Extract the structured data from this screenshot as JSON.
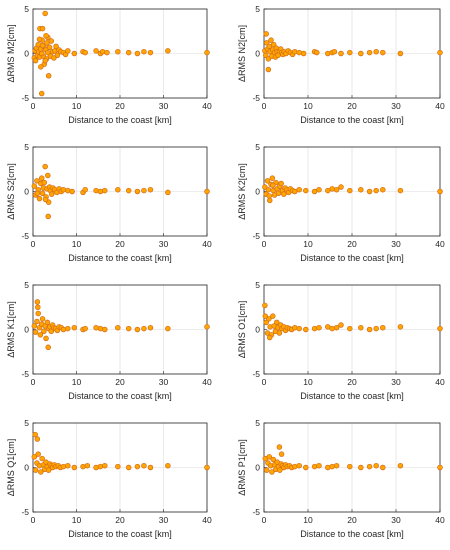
{
  "figure": {
    "colors": {
      "marker_fill": "#ffa500",
      "marker_edge": "#d2691e",
      "grid": "#dcdcdc",
      "axis": "#262626"
    }
  },
  "chart_data": [
    {
      "type": "scatter",
      "xlabel": "Distance to the coast [km]",
      "ylabel": "ΔRMS M2[cm]",
      "xlim": [
        0,
        40
      ],
      "ylim": [
        -5,
        5
      ],
      "xticks": [
        0,
        10,
        20,
        30,
        40
      ],
      "yticks": [
        -5,
        0,
        5
      ],
      "grid": true,
      "x": [
        0.3,
        0.5,
        0.6,
        0.8,
        1.0,
        1.2,
        1.3,
        1.5,
        1.6,
        1.8,
        2.0,
        2.1,
        2.2,
        2.4,
        2.5,
        2.6,
        2.8,
        3.0,
        3.1,
        3.2,
        3.4,
        3.6,
        3.8,
        4.0,
        4.2,
        4.5,
        4.8,
        5.0,
        5.3,
        5.6,
        6.0,
        6.4,
        7.0,
        7.5,
        8.0,
        9.5,
        11.5,
        12.0,
        14.5,
        15.5,
        16.0,
        17.0,
        19.5,
        22.0,
        24.0,
        25.5,
        27.0,
        31.0,
        40.0,
        1.8,
        2.2,
        2.8,
        3.4,
        3.0,
        2.0,
        1.5
      ],
      "y": [
        -0.5,
        0.3,
        -0.8,
        0.6,
        -0.2,
        1.0,
        0.2,
        -0.4,
        2.8,
        0.5,
        -4.5,
        1.5,
        2.8,
        -0.3,
        0.8,
        -1.2,
        4.5,
        0.4,
        -0.6,
        1.2,
        0.1,
        -2.5,
        0.7,
        -0.3,
        1.4,
        0.2,
        -0.5,
        0.3,
        0.8,
        -0.2,
        0.4,
        0.2,
        0.1,
        -0.1,
        0.3,
        0.0,
        0.2,
        0.1,
        0.3,
        0.0,
        0.2,
        0.1,
        0.2,
        0.1,
        0.0,
        0.2,
        0.1,
        0.3,
        0.1,
        -1.5,
        0.9,
        -0.8,
        1.8,
        2.0,
        0.0,
        1.6
      ]
    },
    {
      "type": "scatter",
      "xlabel": "Distance to the coast [km]",
      "ylabel": "ΔRMS N2[cm]",
      "xlim": [
        0,
        40
      ],
      "ylim": [
        -5,
        5
      ],
      "xticks": [
        0,
        10,
        20,
        30,
        40
      ],
      "yticks": [
        -5,
        0,
        5
      ],
      "grid": true,
      "x": [
        0.2,
        0.4,
        0.6,
        0.8,
        1.0,
        1.2,
        1.4,
        1.6,
        1.8,
        2.0,
        2.2,
        2.4,
        2.6,
        2.8,
        3.0,
        3.2,
        3.5,
        3.8,
        4.0,
        4.3,
        4.6,
        5.0,
        5.5,
        6.0,
        6.5,
        7.0,
        8.0,
        9.0,
        11.5,
        12.0,
        14.5,
        15.5,
        16.0,
        17.5,
        19.5,
        22.0,
        24.0,
        25.5,
        27.0,
        31.0,
        40.0,
        1.0,
        0.5
      ],
      "y": [
        0.3,
        -0.2,
        1.2,
        0.5,
        -0.6,
        0.8,
        0.2,
        1.5,
        -0.3,
        0.4,
        1.0,
        0.1,
        -0.4,
        0.6,
        0.2,
        -0.2,
        0.3,
        0.5,
        0.1,
        -0.1,
        0.2,
        0.0,
        0.3,
        0.1,
        -0.1,
        0.2,
        0.1,
        0.0,
        0.2,
        0.1,
        0.0,
        0.1,
        0.2,
        0.0,
        0.1,
        0.0,
        0.1,
        0.2,
        0.1,
        0.0,
        0.1,
        -1.8,
        2.2
      ]
    },
    {
      "type": "scatter",
      "xlabel": "Distance to the coast [km]",
      "ylabel": "ΔRMS S2[cm]",
      "xlim": [
        0,
        40
      ],
      "ylim": [
        -5,
        5
      ],
      "xticks": [
        0,
        10,
        20,
        30,
        40
      ],
      "yticks": [
        -5,
        0,
        5
      ],
      "grid": true,
      "x": [
        0.3,
        0.6,
        0.9,
        1.2,
        1.5,
        1.8,
        2.0,
        2.2,
        2.4,
        2.6,
        2.8,
        3.0,
        3.2,
        3.4,
        3.6,
        3.8,
        4.0,
        4.3,
        4.6,
        5.0,
        5.5,
        6.0,
        6.5,
        7.0,
        8.0,
        9.0,
        11.5,
        12.0,
        14.5,
        15.5,
        16.5,
        19.5,
        22.0,
        24.0,
        25.5,
        27.0,
        31.0,
        40.0,
        2.9,
        3.5,
        1.0
      ],
      "y": [
        0.6,
        -0.4,
        1.2,
        0.2,
        -0.8,
        0.9,
        1.5,
        -0.2,
        0.4,
        1.0,
        2.8,
        -0.6,
        0.3,
        1.8,
        -1.2,
        0.5,
        0.1,
        -0.3,
        0.4,
        0.2,
        -0.1,
        0.3,
        0.0,
        0.2,
        0.1,
        0.0,
        -0.1,
        0.2,
        0.1,
        0.0,
        0.1,
        0.2,
        0.1,
        0.0,
        0.1,
        0.2,
        -0.1,
        0.0,
        -0.9,
        -2.8,
        -0.2
      ]
    },
    {
      "type": "scatter",
      "xlabel": "Distance to the coast [km]",
      "ylabel": "ΔRMS K2[cm]",
      "xlim": [
        0,
        40
      ],
      "ylim": [
        -5,
        5
      ],
      "xticks": [
        0,
        10,
        20,
        30,
        40
      ],
      "yticks": [
        -5,
        0,
        5
      ],
      "grid": true,
      "x": [
        0.2,
        0.5,
        0.8,
        1.0,
        1.3,
        1.6,
        1.9,
        2.1,
        2.4,
        2.7,
        3.0,
        3.3,
        3.6,
        3.9,
        4.2,
        4.5,
        4.8,
        5.2,
        5.6,
        6.0,
        6.5,
        7.0,
        8.0,
        9.5,
        11.5,
        12.5,
        14.5,
        15.5,
        16.5,
        17.5,
        19.5,
        22.0,
        24.0,
        25.5,
        27.0,
        31.0,
        40.0,
        1.2,
        2.0
      ],
      "y": [
        0.5,
        -0.3,
        1.2,
        0.2,
        -1.0,
        0.8,
        1.5,
        0.1,
        -0.4,
        1.0,
        0.3,
        -0.2,
        0.6,
        0.9,
        0.1,
        -0.3,
        0.4,
        0.2,
        -0.1,
        0.3,
        0.1,
        0.0,
        0.2,
        0.1,
        0.0,
        0.2,
        0.1,
        0.3,
        0.2,
        0.5,
        0.1,
        0.2,
        0.0,
        0.1,
        0.2,
        0.1,
        0.0,
        -0.5,
        0.7
      ]
    },
    {
      "type": "scatter",
      "xlabel": "Distance to the coast [km]",
      "ylabel": "ΔRMS K1[cm]",
      "xlim": [
        0,
        40
      ],
      "ylim": [
        -5,
        5
      ],
      "xticks": [
        0,
        10,
        20,
        30,
        40
      ],
      "yticks": [
        -5,
        0,
        5
      ],
      "grid": true,
      "x": [
        0.3,
        0.6,
        0.9,
        1.0,
        1.2,
        1.5,
        1.7,
        2.0,
        2.2,
        2.5,
        2.8,
        3.0,
        3.3,
        3.6,
        3.9,
        4.2,
        4.5,
        4.8,
        5.2,
        5.6,
        6.0,
        6.5,
        7.0,
        8.0,
        9.5,
        11.5,
        12.0,
        14.5,
        15.5,
        16.5,
        19.5,
        22.0,
        24.0,
        25.5,
        27.0,
        31.0,
        40.0,
        1.1,
        3.5
      ],
      "y": [
        0.4,
        -0.3,
        0.9,
        3.1,
        1.8,
        0.2,
        -0.6,
        0.6,
        1.2,
        -0.2,
        0.4,
        -1.0,
        0.8,
        0.1,
        0.3,
        -0.2,
        0.5,
        0.2,
        0.1,
        -0.1,
        0.3,
        0.2,
        0.0,
        0.1,
        0.2,
        0.0,
        0.1,
        0.2,
        0.1,
        0.0,
        0.2,
        0.1,
        0.0,
        0.1,
        0.2,
        0.1,
        0.3,
        2.5,
        -2.0
      ]
    },
    {
      "type": "scatter",
      "xlabel": "Distance to the coast [km]",
      "ylabel": "ΔRMS O1[cm]",
      "xlim": [
        0,
        40
      ],
      "ylim": [
        -5,
        5
      ],
      "xticks": [
        0,
        10,
        20,
        30,
        40
      ],
      "yticks": [
        -5,
        0,
        5
      ],
      "grid": true,
      "x": [
        0.2,
        0.5,
        0.8,
        1.1,
        1.4,
        1.7,
        2.0,
        2.3,
        2.6,
        2.9,
        3.2,
        3.5,
        3.8,
        4.1,
        4.5,
        4.9,
        5.3,
        5.8,
        6.3,
        7.0,
        8.0,
        9.5,
        11.5,
        12.5,
        14.5,
        15.5,
        16.5,
        17.5,
        19.5,
        22.0,
        24.0,
        25.5,
        27.0,
        31.0,
        40.0,
        0.3,
        1.3
      ],
      "y": [
        2.7,
        0.8,
        -0.4,
        1.2,
        0.3,
        -0.6,
        1.5,
        0.4,
        -0.2,
        0.8,
        0.2,
        -0.4,
        0.5,
        0.1,
        0.3,
        -0.1,
        0.2,
        0.1,
        0.0,
        0.2,
        0.1,
        0.0,
        0.1,
        0.2,
        0.3,
        0.1,
        0.2,
        0.5,
        0.1,
        0.2,
        0.0,
        0.1,
        0.2,
        0.3,
        0.1,
        1.5,
        -0.9
      ]
    },
    {
      "type": "scatter",
      "xlabel": "Distance to the coast [km]",
      "ylabel": "ΔRMS Q1[cm]",
      "xlim": [
        0,
        40
      ],
      "ylim": [
        -5,
        5
      ],
      "xticks": [
        0,
        10,
        20,
        30,
        40
      ],
      "yticks": [
        -5,
        0,
        5
      ],
      "grid": true,
      "x": [
        0.3,
        0.6,
        0.9,
        1.2,
        1.5,
        1.8,
        2.1,
        2.4,
        2.7,
        3.0,
        3.3,
        3.6,
        3.9,
        4.2,
        4.5,
        4.9,
        5.3,
        5.8,
        6.3,
        7.0,
        8.0,
        9.5,
        11.5,
        12.5,
        14.5,
        15.5,
        16.5,
        19.5,
        22.0,
        24.0,
        25.5,
        27.0,
        31.0,
        40.0,
        0.5,
        1.0
      ],
      "y": [
        1.2,
        -0.3,
        0.5,
        1.5,
        0.2,
        -0.5,
        1.0,
        0.3,
        -0.2,
        0.6,
        0.1,
        -0.3,
        0.4,
        0.2,
        0.0,
        0.3,
        0.1,
        0.2,
        0.0,
        0.1,
        0.2,
        0.0,
        0.1,
        0.2,
        0.0,
        0.1,
        0.2,
        0.1,
        0.0,
        0.1,
        0.2,
        0.0,
        0.2,
        0.0,
        3.7,
        3.2
      ]
    },
    {
      "type": "scatter",
      "xlabel": "Distance to the coast [km]",
      "ylabel": "ΔRMS P1[cm]",
      "xlim": [
        0,
        40
      ],
      "ylim": [
        -5,
        5
      ],
      "xticks": [
        0,
        10,
        20,
        30,
        40
      ],
      "yticks": [
        -5,
        0,
        5
      ],
      "grid": true,
      "x": [
        0.3,
        0.6,
        0.9,
        1.2,
        1.5,
        1.8,
        2.1,
        2.4,
        2.7,
        3.0,
        3.3,
        3.6,
        3.9,
        4.2,
        4.5,
        4.9,
        5.3,
        5.8,
        6.3,
        7.0,
        8.0,
        9.5,
        11.5,
        12.5,
        14.5,
        15.5,
        16.5,
        19.5,
        22.0,
        24.0,
        25.5,
        27.0,
        31.0,
        40.0,
        3.5,
        4.0
      ],
      "y": [
        1.0,
        -0.3,
        0.5,
        1.2,
        0.2,
        -0.5,
        0.9,
        0.3,
        -0.2,
        0.6,
        0.1,
        -0.3,
        0.4,
        0.2,
        0.0,
        0.3,
        0.1,
        0.2,
        0.0,
        0.1,
        0.2,
        0.0,
        0.1,
        0.2,
        0.0,
        0.1,
        0.2,
        0.1,
        0.0,
        0.1,
        0.2,
        0.0,
        0.2,
        0.0,
        2.3,
        1.5
      ]
    }
  ]
}
